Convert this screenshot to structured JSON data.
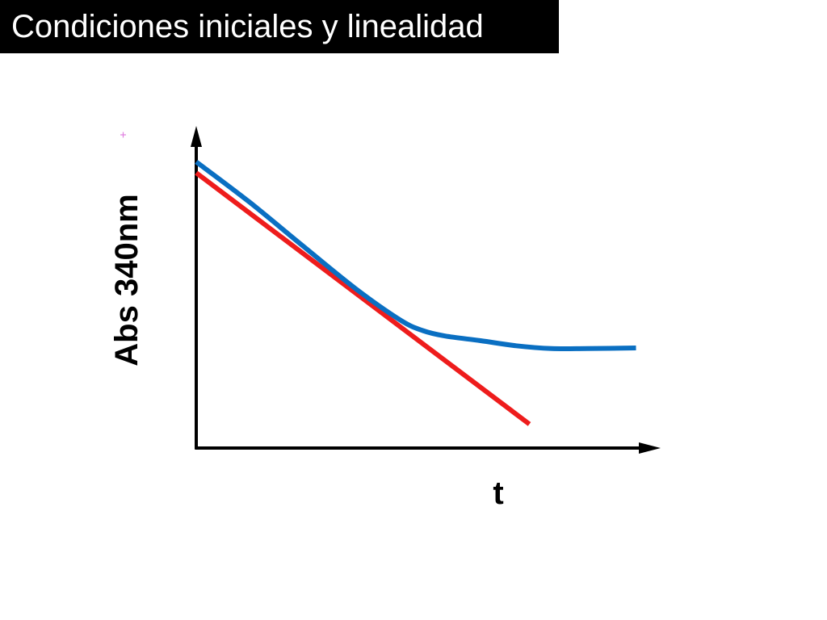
{
  "slide": {
    "title": "Condiciones iniciales y linealidad"
  },
  "chart_data": {
    "type": "line",
    "title": "",
    "xlabel": "t",
    "ylabel": "Abs 340nm",
    "xlim": [
      0,
      10
    ],
    "ylim": [
      0,
      10
    ],
    "grid": false,
    "legend": "none",
    "axis_ticks": false,
    "series": [
      {
        "color": "#ee1c1c",
        "x": [
          0,
          7.5
        ],
        "y": [
          8.74,
          0.76
        ]
      },
      {
        "color": "#0a6fc2",
        "x": [
          0,
          1.2,
          2.4,
          3.6,
          4.6,
          5.1,
          5.6,
          6.4,
          7.2,
          8.0,
          8.8,
          9.9
        ],
        "y": [
          9.09,
          7.81,
          6.42,
          5.05,
          4.06,
          3.73,
          3.56,
          3.41,
          3.25,
          3.16,
          3.16,
          3.18
        ]
      }
    ]
  }
}
